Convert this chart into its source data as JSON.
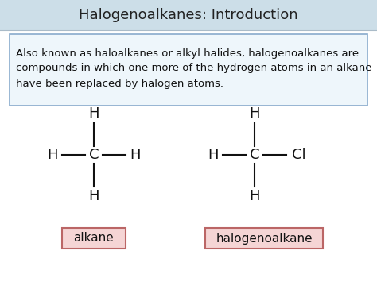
{
  "title": "Halogenoalkanes: Introduction",
  "title_fontsize": 13,
  "title_color": "#222222",
  "background_color": "#dce9f0",
  "header_bg": "#ccdee8",
  "body_bg": "#ffffff",
  "description_text": "Also known as haloalkanes or alkyl halides, halogenoalkanes are\ncompounds in which one more of the hydrogen atoms in an alkane\nhave been replaced by halogen atoms.",
  "desc_fontsize": 9.5,
  "desc_box_color": "#88aacc",
  "desc_box_bg": "#eef6fb",
  "label1": "alkane",
  "label2": "halogenoalkane",
  "label_fontsize": 11,
  "label_box_color": "#bb6666",
  "label_box_bg": "#f5d5d5",
  "molecule_fontsize": 13,
  "bond_color": "#111111"
}
